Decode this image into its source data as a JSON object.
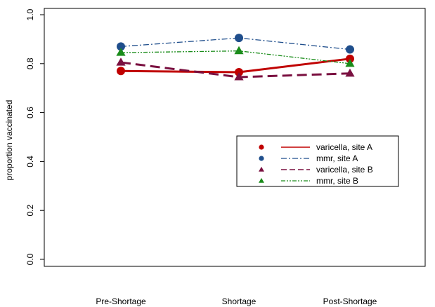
{
  "chart_data": {
    "type": "line",
    "categories": [
      "Pre-Shortage",
      "Shortage",
      "Post-Shortage"
    ],
    "ylabel": "proportion vaccinated",
    "xlabel": "",
    "ylim": [
      0.0,
      1.0
    ],
    "yticks": [
      "0.0",
      "0.2",
      "0.4",
      "0.6",
      "0.8",
      "1.0"
    ],
    "grid": false,
    "legend_position": "right",
    "series": [
      {
        "name": "varicella, site A",
        "values": [
          0.77,
          0.765,
          0.82
        ],
        "color": "#c00000",
        "marker": "circle",
        "dash": "solid",
        "width": 3
      },
      {
        "name": "mmr, site A",
        "values": [
          0.87,
          0.905,
          0.858
        ],
        "color": "#1f4e8c",
        "marker": "circle",
        "dash": "dashdot",
        "width": 1.3
      },
      {
        "name": "varicella, site B",
        "values": [
          0.805,
          0.745,
          0.76
        ],
        "color": "#7a1040",
        "marker": "triangle",
        "dash": "dashed",
        "width": 3
      },
      {
        "name": "mmr, site B",
        "values": [
          0.845,
          0.852,
          0.8
        ],
        "color": "#1a8c1a",
        "marker": "triangle",
        "dash": "dashdotdot",
        "width": 1.3
      }
    ]
  }
}
